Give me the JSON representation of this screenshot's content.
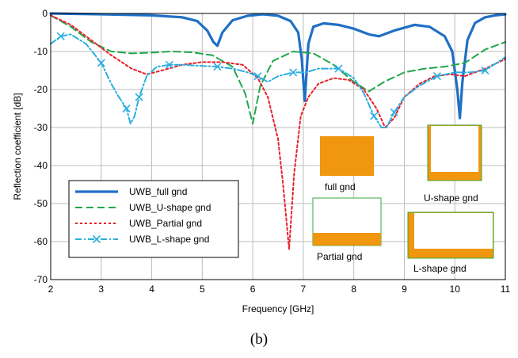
{
  "chart_data": {
    "type": "line",
    "xlabel": "Frequency [GHz]",
    "ylabel": "Reflection coefficient [dB]",
    "xlim": [
      2,
      11
    ],
    "ylim": [
      -70,
      0
    ],
    "xticks": [
      2,
      3,
      4,
      5,
      6,
      7,
      8,
      9,
      10,
      11
    ],
    "yticks": [
      0,
      -10,
      -20,
      -30,
      -40,
      -50,
      -60,
      -70
    ],
    "grid": true,
    "legend_position": "bottom-left",
    "series": [
      {
        "name": "UWB_full gnd",
        "color": "#1f6fc5",
        "style": "solid",
        "x": [
          2.0,
          3.0,
          4.0,
          4.6,
          4.9,
          5.1,
          5.22,
          5.3,
          5.4,
          5.6,
          5.9,
          6.2,
          6.5,
          6.75,
          6.9,
          6.97,
          7.03,
          7.1,
          7.2,
          7.4,
          7.7,
          8.0,
          8.3,
          8.5,
          8.8,
          9.2,
          9.5,
          9.8,
          9.95,
          10.05,
          10.1,
          10.15,
          10.25,
          10.4,
          10.6,
          10.8,
          11.0
        ],
        "y": [
          0.0,
          -0.2,
          -0.5,
          -1.0,
          -2.0,
          -4.5,
          -7.5,
          -8.5,
          -5.0,
          -1.8,
          -0.6,
          -0.2,
          -0.6,
          -2.0,
          -5.0,
          -12.0,
          -23.0,
          -8.0,
          -3.5,
          -2.6,
          -3.0,
          -4.0,
          -5.5,
          -6.0,
          -4.5,
          -3.0,
          -3.5,
          -6.0,
          -10.0,
          -20.0,
          -27.5,
          -18.0,
          -7.0,
          -2.5,
          -1.0,
          -0.5,
          -0.2
        ]
      },
      {
        "name": "UWB_U-shape gnd",
        "color": "#22a64a",
        "style": "dash",
        "x": [
          2.0,
          2.4,
          2.8,
          3.2,
          3.6,
          4.0,
          4.4,
          4.8,
          5.2,
          5.6,
          5.85,
          6.0,
          6.15,
          6.4,
          6.8,
          7.2,
          7.6,
          8.0,
          8.3,
          8.6,
          9.0,
          9.4,
          9.8,
          10.2,
          10.6,
          11.0
        ],
        "y": [
          -0.5,
          -3.5,
          -7.5,
          -10.0,
          -10.5,
          -10.3,
          -10.0,
          -10.2,
          -11.0,
          -14.0,
          -21.0,
          -29.0,
          -19.0,
          -12.5,
          -10.0,
          -10.5,
          -13.5,
          -18.0,
          -20.5,
          -18.0,
          -15.5,
          -14.5,
          -14.0,
          -13.0,
          -9.5,
          -7.5
        ]
      },
      {
        "name": "UWB_Partial gnd",
        "color": "#e8202a",
        "style": "dot",
        "x": [
          2.0,
          2.4,
          2.8,
          3.2,
          3.6,
          3.9,
          4.2,
          4.6,
          5.0,
          5.4,
          5.8,
          6.1,
          6.3,
          6.5,
          6.6,
          6.72,
          6.82,
          6.95,
          7.1,
          7.3,
          7.6,
          7.9,
          8.2,
          8.45,
          8.62,
          8.8,
          9.0,
          9.3,
          9.6,
          9.9,
          10.2,
          10.6,
          11.0
        ],
        "y": [
          -0.5,
          -3.0,
          -7.0,
          -11.0,
          -14.5,
          -16.0,
          -15.0,
          -13.5,
          -12.8,
          -12.8,
          -13.5,
          -17.0,
          -22.0,
          -33.0,
          -45.0,
          -62.0,
          -42.0,
          -27.0,
          -22.0,
          -18.5,
          -17.0,
          -17.5,
          -20.0,
          -25.0,
          -30.0,
          -27.5,
          -22.0,
          -18.5,
          -16.5,
          -16.0,
          -16.5,
          -14.5,
          -12.0
        ]
      },
      {
        "name": "UWB_L-shape gnd",
        "color": "#2aaee0",
        "style": "dashdot",
        "markers": "x",
        "x": [
          2.0,
          2.2,
          2.4,
          2.7,
          3.0,
          3.2,
          3.35,
          3.5,
          3.58,
          3.66,
          3.75,
          3.9,
          4.1,
          4.35,
          4.6,
          5.0,
          5.3,
          5.6,
          5.9,
          6.1,
          6.3,
          6.5,
          6.8,
          7.05,
          7.3,
          7.7,
          8.0,
          8.2,
          8.4,
          8.55,
          8.65,
          8.8,
          9.0,
          9.3,
          9.65,
          10.0,
          10.3,
          10.6,
          11.0
        ],
        "y": [
          -8.0,
          -6.0,
          -5.5,
          -8.0,
          -13.0,
          -18.5,
          -22.0,
          -25.0,
          -29.0,
          -27.0,
          -22.0,
          -16.5,
          -14.0,
          -13.5,
          -13.5,
          -13.8,
          -14.0,
          -14.5,
          -15.5,
          -16.5,
          -18.0,
          -16.5,
          -15.5,
          -15.5,
          -14.5,
          -14.5,
          -17.0,
          -21.0,
          -27.0,
          -30.0,
          -30.0,
          -26.0,
          -22.0,
          -19.0,
          -16.5,
          -15.5,
          -15.5,
          -15.0,
          -11.5
        ]
      }
    ],
    "insets": [
      {
        "label": "full gnd",
        "shape": "full"
      },
      {
        "label": "U-shape gnd",
        "shape": "U"
      },
      {
        "label": "Partial gnd",
        "shape": "partial"
      },
      {
        "label": "L-shape gnd",
        "shape": "L"
      }
    ],
    "inset_color": "#f0960f"
  },
  "caption": "(b)"
}
